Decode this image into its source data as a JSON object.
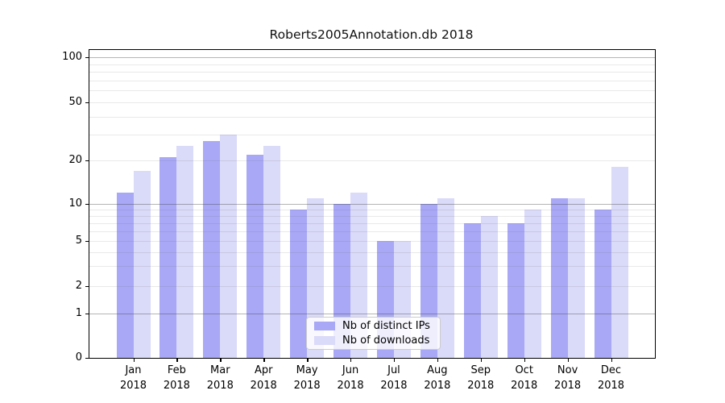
{
  "title": "Roberts2005Annotation.db 2018",
  "chart_data": {
    "type": "bar",
    "title": "Roberts2005Annotation.db 2018",
    "categories": [
      "Jan 2018",
      "Feb 2018",
      "Mar 2018",
      "Apr 2018",
      "May 2018",
      "Jun 2018",
      "Jul 2018",
      "Aug 2018",
      "Sep 2018",
      "Oct 2018",
      "Nov 2018",
      "Dec 2018"
    ],
    "series": [
      {
        "name": "Nb of distinct IPs",
        "color": "#a8a8f6",
        "values": [
          12,
          21,
          27,
          22,
          9,
          10,
          5,
          10,
          7,
          7,
          11,
          9
        ]
      },
      {
        "name": "Nb of downloads",
        "color": "#dadaf9",
        "values": [
          17,
          25,
          30,
          25,
          11,
          12,
          5,
          11,
          8,
          9,
          11,
          18
        ]
      }
    ],
    "xlabel": "",
    "ylabel": "",
    "yscale": "symlog",
    "ylim": [
      0,
      117
    ],
    "y_tick_labels": [
      "0",
      "1",
      "2",
      "5",
      "10",
      "20",
      "50",
      "100"
    ],
    "y_ticks": [
      0,
      1,
      2,
      5,
      10,
      20,
      50,
      100
    ],
    "y_major_gridlines": [
      1,
      10,
      100
    ],
    "y_minor_gridlines": [
      2,
      3,
      4,
      5,
      6,
      7,
      8,
      9,
      20,
      30,
      40,
      50,
      60,
      70,
      80,
      90
    ],
    "grid": "on",
    "legend_position": "lower center",
    "colors": {
      "distinct_ips_bar": "#a8a8f6",
      "downloads_bar": "#dadaf9",
      "major_grid": "#b5b5b5",
      "minor_grid": "#e4e4e4",
      "axis": "#000000"
    }
  }
}
